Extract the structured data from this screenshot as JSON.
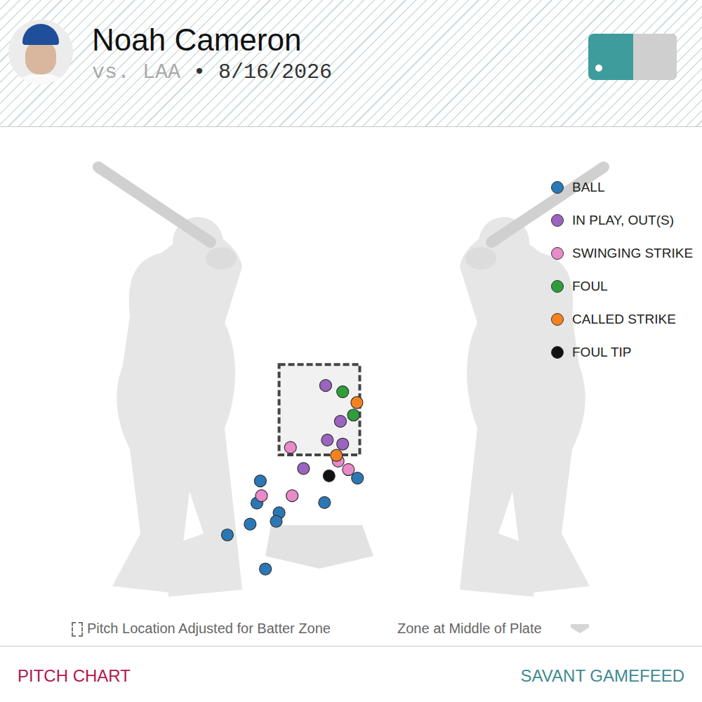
{
  "header": {
    "title": "Noah Cameron",
    "subtitle": [
      "vs. LAA",
      "• 8/16/2026"
    ]
  },
  "chart_data": {
    "type": "scatter",
    "xlim": [
      -2.5,
      2.5
    ],
    "ylim": [
      -1,
      4
    ],
    "tick_labels": false,
    "grid": false,
    "legend": "top right",
    "strike_zone": {
      "x": [
        -0.71,
        0.71
      ],
      "y": [
        1.6,
        3.19
      ]
    },
    "series": [
      {
        "name": "BALL",
        "color": "#2b78b6",
        "marker": "circle",
        "x": [
          -1.04,
          -1.1,
          0.67,
          0.09,
          -0.71,
          -0.76,
          -1.22,
          -1.62,
          -0.95
        ],
        "values": [
          1.14,
          0.75,
          1.19,
          0.76,
          0.58,
          0.43,
          0.38,
          0.19,
          -0.41
        ]
      },
      {
        "name": "IN PLAY, OUT(S)",
        "color": "#9b64c0",
        "marker": "circle",
        "x": [
          0.11,
          0.37,
          0.14,
          0.41,
          -0.28
        ],
        "values": [
          2.82,
          2.19,
          1.86,
          1.79,
          1.36
        ]
      },
      {
        "name": "SWINGING STRIKE",
        "color": "#e98bca",
        "marker": "circle",
        "x": [
          -0.51,
          0.33,
          0.51,
          -1.02,
          -0.48
        ],
        "values": [
          1.73,
          1.49,
          1.34,
          0.88,
          0.88
        ]
      },
      {
        "name": "FOUL",
        "color": "#2e9e3b",
        "marker": "circle",
        "x": [
          0.41,
          0.6
        ],
        "values": [
          2.71,
          2.3
        ]
      },
      {
        "name": "CALLED STRIKE",
        "color": "#f5821f",
        "marker": "circle",
        "x": [
          0.66,
          0.3
        ],
        "values": [
          2.52,
          1.59
        ]
      },
      {
        "name": "FOUL TIP",
        "color": "#111111",
        "marker": "circle",
        "x": [
          0.17
        ],
        "values": [
          1.23
        ]
      }
    ]
  },
  "footer": {
    "notes": [
      "Pitch Location Adjusted for Batter Zone",
      "Zone at Middle of Plate"
    ],
    "left": "PITCH CHART",
    "right": "SAVANT GAMEFEED"
  }
}
